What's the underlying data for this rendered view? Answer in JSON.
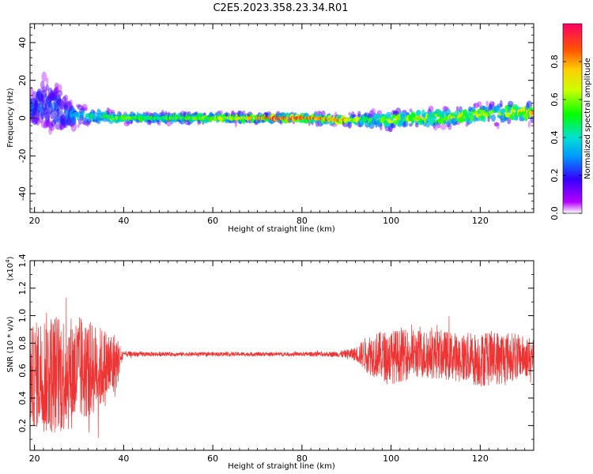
{
  "chart_data": [
    {
      "type": "heatmap",
      "title": "C2E5.2023.358.23.34.R01",
      "xlabel": "Height of straight line (km)",
      "ylabel": "Frequency (Hz)",
      "xlim": [
        19,
        132
      ],
      "ylim": [
        -50,
        50
      ],
      "xticks": [
        "20",
        "40",
        "60",
        "80",
        "100",
        "120"
      ],
      "yticks": [
        "-40",
        "-20",
        "0",
        "20",
        "40"
      ],
      "colorbar": {
        "label": "Normalized spectral amplitude",
        "range": [
          0.0,
          1.0
        ],
        "ticks": [
          "0.0",
          "0.2",
          "0.4",
          "0.6",
          "0.8"
        ]
      },
      "ridge": {
        "x": [
          20,
          22,
          25,
          28,
          32,
          36,
          38,
          45,
          55,
          65,
          75,
          82,
          88,
          92,
          96,
          100,
          105,
          110,
          115,
          120,
          125,
          130
        ],
        "y": [
          5,
          8,
          4,
          2,
          1,
          1,
          0,
          0,
          0,
          0,
          0,
          0,
          -1,
          -1,
          -1,
          -1,
          0,
          0,
          1,
          2,
          3,
          3
        ],
        "spread": [
          14,
          18,
          20,
          9,
          5,
          4,
          3,
          3,
          3,
          3,
          2,
          3,
          3,
          4,
          5,
          6,
          5,
          6,
          5,
          6,
          7,
          6
        ],
        "peak": [
          0.25,
          0.25,
          0.25,
          0.3,
          0.45,
          0.55,
          0.6,
          0.5,
          0.55,
          0.65,
          0.9,
          0.8,
          0.85,
          0.6,
          0.55,
          0.6,
          0.7,
          0.65,
          0.75,
          0.65,
          0.6,
          0.75
        ]
      }
    },
    {
      "type": "line",
      "xlabel": "Height of straight line (km)",
      "ylabel": "SNR (10 * v/v)",
      "yscale_label": "(x10",
      "yscale_exp": "4",
      "xlim": [
        19,
        132
      ],
      "ylim": [
        0.02,
        1.4
      ],
      "xticks": [
        "20",
        "40",
        "60",
        "80",
        "100",
        "120"
      ],
      "yticks": [
        "0.2",
        "0.4",
        "0.6",
        "0.8",
        "1.0",
        "1.2",
        "1.4"
      ],
      "color": "#ee3333",
      "envelope": {
        "x": [
          19,
          22,
          26,
          30,
          35,
          38,
          40,
          50,
          60,
          70,
          80,
          88,
          92,
          95,
          100,
          105,
          110,
          115,
          120,
          125,
          130,
          132
        ],
        "center": [
          0.55,
          0.58,
          0.58,
          0.6,
          0.62,
          0.64,
          0.72,
          0.72,
          0.72,
          0.72,
          0.72,
          0.72,
          0.72,
          0.72,
          0.7,
          0.72,
          0.72,
          0.7,
          0.68,
          0.7,
          0.7,
          0.7
        ],
        "amplitude": [
          0.35,
          0.45,
          0.45,
          0.4,
          0.3,
          0.25,
          0.02,
          0.015,
          0.015,
          0.015,
          0.015,
          0.02,
          0.05,
          0.15,
          0.2,
          0.18,
          0.18,
          0.18,
          0.2,
          0.2,
          0.15,
          0.15
        ]
      }
    }
  ]
}
